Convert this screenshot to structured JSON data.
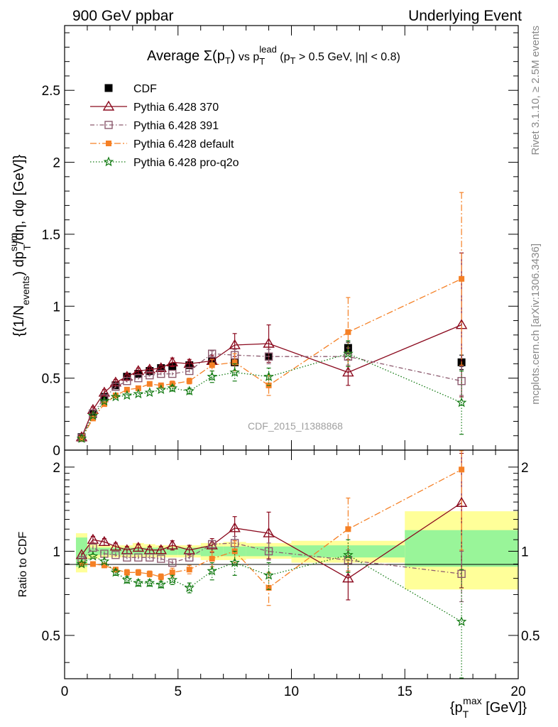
{
  "header": {
    "left": "900 GeV ppbar",
    "right": "Underlying Event"
  },
  "side_labels": {
    "rivet": "Rivet 3.1.10, ≥ 2.5M events",
    "mcplots": "mcplots.cern.ch [arXiv:1306.3436]"
  },
  "watermark": "CDF_2015_I1388868",
  "chart_data": [
    {
      "type": "scatter",
      "panel": "main",
      "title": {
        "prefix": "Average ",
        "sigma": "Σ(p",
        "sigma_sub": "T",
        "sigma_close": ")",
        "vs": " vs p",
        "vs_sub": "T",
        "vs_sup": "lead",
        "cut_1": " (p",
        "cut_1_sub": "T",
        "cut_2": " > 0.5 GeV, |η| < 0.8)"
      },
      "ylabel": {
        "part1": "{(1/N",
        "part1_sub": "events",
        "part2": ") dp",
        "part2_sup": "sum",
        "part2_sub": "T",
        "part3": "/dη, dφ [GeV]}"
      },
      "xlim": [
        0,
        20
      ],
      "ylim": [
        0,
        2.95
      ],
      "y_ticks": [
        {
          "v": 0,
          "label": "0"
        },
        {
          "v": 0.5,
          "label": "0.5"
        },
        {
          "v": 1,
          "label": "1"
        },
        {
          "v": 1.5,
          "label": "1.5"
        },
        {
          "v": 2,
          "label": "2"
        },
        {
          "v": 2.5,
          "label": "2.5"
        }
      ],
      "legend_position": "top-left",
      "x": [
        0.75,
        1.25,
        1.75,
        2.25,
        2.75,
        3.25,
        3.75,
        4.25,
        4.75,
        5.5,
        6.5,
        7.5,
        9.0,
        12.5,
        17.5
      ],
      "series": [
        {
          "name": "CDF",
          "color": "#000000",
          "marker": "filled-square",
          "line": "none",
          "values": [
            0.09,
            0.25,
            0.37,
            0.45,
            0.51,
            0.53,
            0.55,
            0.57,
            0.58,
            0.59,
            0.62,
            0.61,
            0.65,
            0.71,
            0.61
          ],
          "errors": [
            0.01,
            0.01,
            0.01,
            0.01,
            0.01,
            0.01,
            0.01,
            0.01,
            0.01,
            0.01,
            0.01,
            0.01,
            0.02,
            0.04,
            0.05
          ]
        },
        {
          "name": "Pythia 6.428 370",
          "color": "#8b0a1e",
          "marker": "open-triangle",
          "line": "solid",
          "values": [
            0.09,
            0.28,
            0.4,
            0.47,
            0.51,
            0.55,
            0.56,
            0.57,
            0.61,
            0.6,
            0.62,
            0.73,
            0.74,
            0.54,
            0.87
          ],
          "errors": [
            0.01,
            0.02,
            0.02,
            0.02,
            0.02,
            0.02,
            0.02,
            0.02,
            0.03,
            0.03,
            0.04,
            0.08,
            0.13,
            0.09,
            0.5
          ]
        },
        {
          "name": "Pythia 6.428 391",
          "color": "#8c5a6e",
          "marker": "open-square",
          "line": "dash-dot",
          "values": [
            0.085,
            0.255,
            0.36,
            0.44,
            0.48,
            0.5,
            0.52,
            0.53,
            0.53,
            0.55,
            0.67,
            0.66,
            0.65,
            0.65,
            0.48
          ],
          "errors": [
            0.01,
            0.01,
            0.01,
            0.01,
            0.01,
            0.01,
            0.01,
            0.01,
            0.01,
            0.01,
            0.02,
            0.04,
            0.05,
            0.06,
            0.1
          ]
        },
        {
          "name": "Pythia 6.428 default",
          "color": "#f58025",
          "marker": "filled-square-small",
          "line": "dash-dot-long",
          "values": [
            0.08,
            0.22,
            0.32,
            0.38,
            0.42,
            0.43,
            0.46,
            0.45,
            0.46,
            0.48,
            0.59,
            0.61,
            0.45,
            0.82,
            1.19
          ],
          "errors": [
            0.01,
            0.01,
            0.01,
            0.01,
            0.01,
            0.01,
            0.01,
            0.01,
            0.02,
            0.02,
            0.04,
            0.06,
            0.07,
            0.24,
            0.6
          ]
        },
        {
          "name": "Pythia 6.428 pro-q2o",
          "color": "#127a12",
          "marker": "star",
          "line": "dotted",
          "values": [
            0.08,
            0.24,
            0.34,
            0.37,
            0.38,
            0.39,
            0.4,
            0.42,
            0.43,
            0.41,
            0.51,
            0.54,
            0.51,
            0.67,
            0.33
          ],
          "errors": [
            0.01,
            0.01,
            0.01,
            0.01,
            0.01,
            0.01,
            0.01,
            0.01,
            0.02,
            0.02,
            0.04,
            0.06,
            0.06,
            0.09,
            0.22
          ]
        }
      ]
    },
    {
      "type": "scatter",
      "panel": "ratio",
      "ylabel": "Ratio to CDF",
      "xlabel": {
        "prefix": "{p",
        "sub": "T",
        "sup": "max",
        "suffix": " [GeV]}"
      },
      "xlim": [
        0,
        20
      ],
      "ylim": [
        0.35,
        2.3
      ],
      "x_ticks": [
        {
          "v": 0,
          "label": "0"
        },
        {
          "v": 5,
          "label": "5"
        },
        {
          "v": 10,
          "label": "10"
        },
        {
          "v": 15,
          "label": "15"
        },
        {
          "v": 20,
          "label": "20"
        }
      ],
      "y_ticks": [
        {
          "v": 0.5,
          "label": "0.5"
        },
        {
          "v": 1,
          "label": "1"
        },
        {
          "v": 2,
          "label": "2"
        }
      ],
      "uncertainty_bands": [
        {
          "x0": 0.5,
          "x1": 1.0,
          "stat": [
            0.88,
            1.12
          ],
          "total": [
            0.84,
            1.16
          ]
        },
        {
          "x0": 1.0,
          "x1": 1.5,
          "stat": [
            0.97,
            1.03
          ],
          "total": [
            0.94,
            1.06
          ]
        },
        {
          "x0": 1.5,
          "x1": 2.0,
          "stat": [
            0.97,
            1.03
          ],
          "total": [
            0.95,
            1.05
          ]
        },
        {
          "x0": 2.0,
          "x1": 2.5,
          "stat": [
            0.97,
            1.03
          ],
          "total": [
            0.95,
            1.05
          ]
        },
        {
          "x0": 2.5,
          "x1": 3.0,
          "stat": [
            0.97,
            1.03
          ],
          "total": [
            0.95,
            1.05
          ]
        },
        {
          "x0": 3.0,
          "x1": 3.5,
          "stat": [
            0.97,
            1.03
          ],
          "total": [
            0.95,
            1.07
          ]
        },
        {
          "x0": 3.5,
          "x1": 4.0,
          "stat": [
            0.97,
            1.03
          ],
          "total": [
            0.95,
            1.06
          ]
        },
        {
          "x0": 4.0,
          "x1": 4.5,
          "stat": [
            0.97,
            1.03
          ],
          "total": [
            0.95,
            1.05
          ]
        },
        {
          "x0": 4.5,
          "x1": 5.0,
          "stat": [
            0.97,
            1.03
          ],
          "total": [
            0.95,
            1.05
          ]
        },
        {
          "x0": 5.0,
          "x1": 6.0,
          "stat": [
            0.97,
            1.03
          ],
          "total": [
            0.95,
            1.05
          ]
        },
        {
          "x0": 6.0,
          "x1": 7.0,
          "stat": [
            0.96,
            1.04
          ],
          "total": [
            0.93,
            1.07
          ]
        },
        {
          "x0": 7.0,
          "x1": 8.0,
          "stat": [
            0.96,
            1.04
          ],
          "total": [
            0.93,
            1.08
          ]
        },
        {
          "x0": 8.0,
          "x1": 10.0,
          "stat": [
            0.96,
            1.04
          ],
          "total": [
            0.94,
            1.07
          ]
        },
        {
          "x0": 10.0,
          "x1": 15.0,
          "stat": [
            0.95,
            1.05
          ],
          "total": [
            0.91,
            1.09
          ]
        },
        {
          "x0": 15.0,
          "x1": 20.0,
          "stat": [
            0.88,
            1.19
          ],
          "total": [
            0.73,
            1.39
          ]
        }
      ],
      "series": [
        {
          "name": "Pythia 6.428 370",
          "values": [
            0.97,
            1.1,
            1.08,
            1.04,
            1.01,
            1.03,
            1.01,
            1.01,
            1.05,
            1.01,
            1.05,
            1.21,
            1.16,
            0.8,
            1.49
          ],
          "errors": [
            0.02,
            0.03,
            0.03,
            0.03,
            0.03,
            0.03,
            0.03,
            0.03,
            0.04,
            0.04,
            0.06,
            0.12,
            0.22,
            0.13,
            0.75
          ]
        },
        {
          "name": "Pythia 6.428 391",
          "values": [
            0.93,
            1.03,
            0.98,
            0.97,
            0.95,
            0.95,
            0.95,
            0.94,
            0.91,
            0.95,
            1.06,
            1.07,
            1.0,
            0.93,
            0.83
          ],
          "errors": [
            0.02,
            0.02,
            0.02,
            0.02,
            0.02,
            0.02,
            0.02,
            0.02,
            0.02,
            0.02,
            0.03,
            0.06,
            0.07,
            0.08,
            0.17
          ]
        },
        {
          "name": "Pythia 6.428 default",
          "values": [
            0.9,
            0.9,
            0.89,
            0.86,
            0.84,
            0.84,
            0.83,
            0.81,
            0.84,
            0.86,
            0.94,
            1.0,
            0.74,
            1.2,
            1.96
          ],
          "errors": [
            0.02,
            0.02,
            0.02,
            0.02,
            0.02,
            0.02,
            0.02,
            0.02,
            0.03,
            0.03,
            0.06,
            0.09,
            0.1,
            0.35,
            0.95
          ]
        },
        {
          "name": "Pythia 6.428 pro-q2o",
          "values": [
            0.9,
            0.96,
            0.92,
            0.84,
            0.79,
            0.77,
            0.77,
            0.76,
            0.79,
            0.74,
            0.85,
            0.91,
            0.82,
            0.97,
            0.56
          ],
          "errors": [
            0.02,
            0.02,
            0.02,
            0.02,
            0.02,
            0.02,
            0.02,
            0.02,
            0.03,
            0.03,
            0.06,
            0.09,
            0.09,
            0.13,
            0.3
          ]
        }
      ]
    }
  ]
}
